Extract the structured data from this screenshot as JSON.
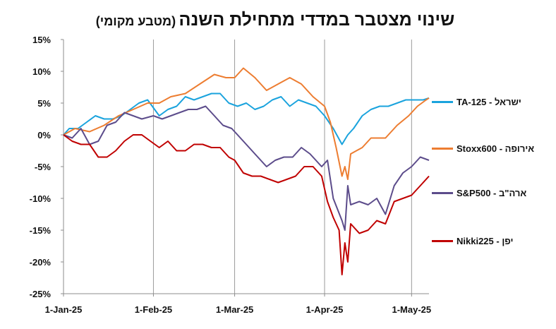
{
  "title": {
    "main": "שינוי מצטבר במדדי מתחילת השנה",
    "sub": "(מטבע מקומי)"
  },
  "chart_data": {
    "type": "line",
    "title": "שינוי מצטבר במדדי מתחילת השנה (מטבע מקומי)",
    "xlabel": "",
    "ylabel": "",
    "ylim": [
      -25,
      15
    ],
    "yticks": [
      "15%",
      "10%",
      "5%",
      "0%",
      "-5%",
      "-10%",
      "-15%",
      "-20%",
      "-25%"
    ],
    "xlim": [
      "2025-01-01",
      "2025-05-07"
    ],
    "xticks": [
      {
        "date": "2025-01-01",
        "label": "1-Jan-25"
      },
      {
        "date": "2025-02-01",
        "label": "1-Feb-25"
      },
      {
        "date": "2025-03-01",
        "label": "1-Mar-25"
      },
      {
        "date": "2025-04-01",
        "label": "1-Apr-25"
      },
      {
        "date": "2025-05-01",
        "label": "1-May-25"
      }
    ],
    "grid": "vertical",
    "legend": "right",
    "series": [
      {
        "name": "TA-125 - ישראל",
        "color": "#1aa3dd",
        "points": [
          [
            "2025-01-01",
            0
          ],
          [
            "2025-01-03",
            1
          ],
          [
            "2025-01-06",
            1
          ],
          [
            "2025-01-09",
            2
          ],
          [
            "2025-01-12",
            3
          ],
          [
            "2025-01-15",
            2.5
          ],
          [
            "2025-01-18",
            2.5
          ],
          [
            "2025-01-21",
            3
          ],
          [
            "2025-01-24",
            4
          ],
          [
            "2025-01-27",
            5
          ],
          [
            "2025-01-30",
            5.5
          ],
          [
            "2025-02-03",
            3
          ],
          [
            "2025-02-06",
            4
          ],
          [
            "2025-02-09",
            4.5
          ],
          [
            "2025-02-12",
            6
          ],
          [
            "2025-02-15",
            5.5
          ],
          [
            "2025-02-18",
            6
          ],
          [
            "2025-02-21",
            6.5
          ],
          [
            "2025-02-24",
            6.5
          ],
          [
            "2025-02-27",
            5
          ],
          [
            "2025-03-02",
            4.5
          ],
          [
            "2025-03-05",
            5
          ],
          [
            "2025-03-08",
            4
          ],
          [
            "2025-03-11",
            4.5
          ],
          [
            "2025-03-14",
            5.5
          ],
          [
            "2025-03-17",
            6
          ],
          [
            "2025-03-20",
            4.5
          ],
          [
            "2025-03-23",
            5.5
          ],
          [
            "2025-03-26",
            5
          ],
          [
            "2025-03-29",
            4.5
          ],
          [
            "2025-04-01",
            3
          ],
          [
            "2025-04-04",
            1
          ],
          [
            "2025-04-07",
            -1.5
          ],
          [
            "2025-04-09",
            0
          ],
          [
            "2025-04-11",
            1
          ],
          [
            "2025-04-14",
            3
          ],
          [
            "2025-04-17",
            4
          ],
          [
            "2025-04-20",
            4.5
          ],
          [
            "2025-04-23",
            4.5
          ],
          [
            "2025-04-26",
            5
          ],
          [
            "2025-04-29",
            5.5
          ],
          [
            "2025-05-02",
            5.5
          ],
          [
            "2025-05-05",
            5.5
          ],
          [
            "2025-05-07",
            5.8
          ]
        ]
      },
      {
        "name": "Stoxx600 - אירופה",
        "color": "#ed7d31",
        "points": [
          [
            "2025-01-01",
            0
          ],
          [
            "2025-01-05",
            1
          ],
          [
            "2025-01-10",
            0.5
          ],
          [
            "2025-01-15",
            1.5
          ],
          [
            "2025-01-20",
            3
          ],
          [
            "2025-01-25",
            4
          ],
          [
            "2025-01-30",
            5
          ],
          [
            "2025-02-03",
            5
          ],
          [
            "2025-02-07",
            6
          ],
          [
            "2025-02-12",
            6.5
          ],
          [
            "2025-02-17",
            8
          ],
          [
            "2025-02-22",
            9.5
          ],
          [
            "2025-02-26",
            9
          ],
          [
            "2025-03-01",
            9
          ],
          [
            "2025-03-04",
            10.5
          ],
          [
            "2025-03-08",
            9
          ],
          [
            "2025-03-12",
            7
          ],
          [
            "2025-03-16",
            8
          ],
          [
            "2025-03-20",
            9
          ],
          [
            "2025-03-24",
            8
          ],
          [
            "2025-03-28",
            6
          ],
          [
            "2025-04-01",
            4.5
          ],
          [
            "2025-04-03",
            2
          ],
          [
            "2025-04-05",
            -2
          ],
          [
            "2025-04-07",
            -6.5
          ],
          [
            "2025-04-08",
            -5
          ],
          [
            "2025-04-09",
            -7
          ],
          [
            "2025-04-10",
            -3
          ],
          [
            "2025-04-14",
            -2
          ],
          [
            "2025-04-17",
            -0.5
          ],
          [
            "2025-04-22",
            -0.5
          ],
          [
            "2025-04-26",
            1.5
          ],
          [
            "2025-04-30",
            3
          ],
          [
            "2025-05-03",
            4.5
          ],
          [
            "2025-05-06",
            5.5
          ],
          [
            "2025-05-07",
            5.8
          ]
        ]
      },
      {
        "name": "S&P500 - ארה\"ב",
        "color": "#5c4c8b",
        "points": [
          [
            "2025-01-01",
            0
          ],
          [
            "2025-01-04",
            -0.5
          ],
          [
            "2025-01-07",
            1
          ],
          [
            "2025-01-10",
            -1.5
          ],
          [
            "2025-01-13",
            -1
          ],
          [
            "2025-01-16",
            1.5
          ],
          [
            "2025-01-19",
            2
          ],
          [
            "2025-01-22",
            3.5
          ],
          [
            "2025-01-25",
            3
          ],
          [
            "2025-01-28",
            2.5
          ],
          [
            "2025-02-01",
            3
          ],
          [
            "2025-02-04",
            2.5
          ],
          [
            "2025-02-07",
            3
          ],
          [
            "2025-02-10",
            3.5
          ],
          [
            "2025-02-13",
            4
          ],
          [
            "2025-02-16",
            4
          ],
          [
            "2025-02-19",
            4.5
          ],
          [
            "2025-02-22",
            3
          ],
          [
            "2025-02-25",
            1.5
          ],
          [
            "2025-02-28",
            1
          ],
          [
            "2025-03-03",
            -0.5
          ],
          [
            "2025-03-06",
            -2
          ],
          [
            "2025-03-09",
            -3.5
          ],
          [
            "2025-03-12",
            -5
          ],
          [
            "2025-03-15",
            -4
          ],
          [
            "2025-03-18",
            -3.5
          ],
          [
            "2025-03-21",
            -3.5
          ],
          [
            "2025-03-24",
            -2
          ],
          [
            "2025-03-27",
            -3
          ],
          [
            "2025-03-31",
            -5
          ],
          [
            "2025-04-02",
            -4
          ],
          [
            "2025-04-04",
            -10
          ],
          [
            "2025-04-07",
            -13.5
          ],
          [
            "2025-04-08",
            -15
          ],
          [
            "2025-04-09",
            -8
          ],
          [
            "2025-04-10",
            -11
          ],
          [
            "2025-04-13",
            -10.5
          ],
          [
            "2025-04-16",
            -11
          ],
          [
            "2025-04-19",
            -10
          ],
          [
            "2025-04-22",
            -12.5
          ],
          [
            "2025-04-25",
            -8
          ],
          [
            "2025-04-28",
            -6
          ],
          [
            "2025-05-01",
            -5
          ],
          [
            "2025-05-04",
            -3.5
          ],
          [
            "2025-05-07",
            -4
          ]
        ]
      },
      {
        "name": "Nikki225 - יפן",
        "color": "#c00000",
        "points": [
          [
            "2025-01-01",
            0
          ],
          [
            "2025-01-04",
            -1
          ],
          [
            "2025-01-07",
            -1.5
          ],
          [
            "2025-01-10",
            -1.5
          ],
          [
            "2025-01-13",
            -3.5
          ],
          [
            "2025-01-16",
            -3.5
          ],
          [
            "2025-01-19",
            -2.5
          ],
          [
            "2025-01-22",
            -1
          ],
          [
            "2025-01-25",
            0
          ],
          [
            "2025-01-28",
            0
          ],
          [
            "2025-01-31",
            -1
          ],
          [
            "2025-02-03",
            -2
          ],
          [
            "2025-02-06",
            -1
          ],
          [
            "2025-02-09",
            -2.5
          ],
          [
            "2025-02-12",
            -2.5
          ],
          [
            "2025-02-15",
            -1.5
          ],
          [
            "2025-02-18",
            -1.5
          ],
          [
            "2025-02-21",
            -2
          ],
          [
            "2025-02-24",
            -2
          ],
          [
            "2025-02-27",
            -3.5
          ],
          [
            "2025-03-01",
            -4
          ],
          [
            "2025-03-04",
            -6
          ],
          [
            "2025-03-07",
            -6.5
          ],
          [
            "2025-03-10",
            -6.5
          ],
          [
            "2025-03-13",
            -7
          ],
          [
            "2025-03-16",
            -7.5
          ],
          [
            "2025-03-19",
            -7
          ],
          [
            "2025-03-22",
            -6.5
          ],
          [
            "2025-03-25",
            -5
          ],
          [
            "2025-03-28",
            -5
          ],
          [
            "2025-03-31",
            -6.5
          ],
          [
            "2025-04-02",
            -10.5
          ],
          [
            "2025-04-04",
            -13
          ],
          [
            "2025-04-06",
            -15
          ],
          [
            "2025-04-07",
            -22
          ],
          [
            "2025-04-08",
            -17
          ],
          [
            "2025-04-09",
            -20
          ],
          [
            "2025-04-10",
            -14
          ],
          [
            "2025-04-13",
            -15.5
          ],
          [
            "2025-04-16",
            -15
          ],
          [
            "2025-04-19",
            -13.5
          ],
          [
            "2025-04-22",
            -14
          ],
          [
            "2025-04-25",
            -10.5
          ],
          [
            "2025-04-28",
            -10
          ],
          [
            "2025-05-01",
            -9.5
          ],
          [
            "2025-05-04",
            -8
          ],
          [
            "2025-05-07",
            -6.5
          ]
        ]
      }
    ]
  }
}
